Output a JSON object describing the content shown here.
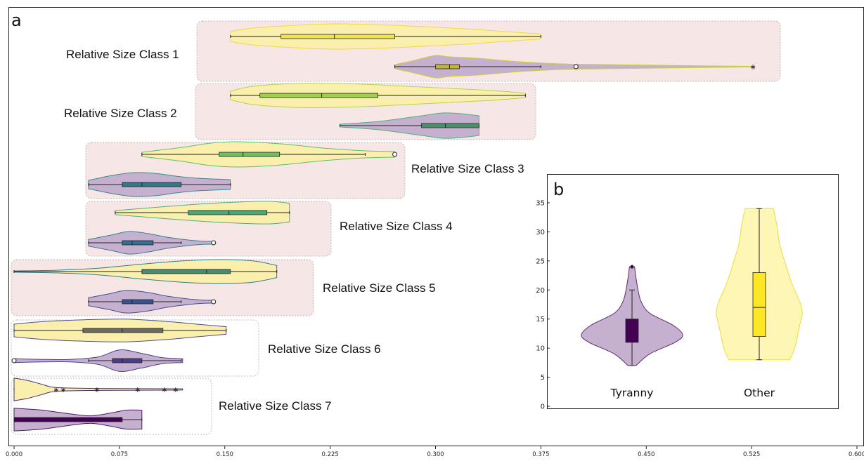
{
  "panel_a_label": "a",
  "panel_b_label": "b",
  "chart_data": [
    {
      "type": "violin",
      "panel": "a",
      "x_ticks": [
        "0.000",
        "0.075",
        "0.150",
        "0.225",
        "0.300",
        "0.375",
        "0.450",
        "0.525",
        "0.600"
      ],
      "xlim": [
        0,
        0.6
      ],
      "colors": {
        "yellow_fill": "#fbefad",
        "purple_fill": "#c6b0cf",
        "highlight_box": "#f6e6e6"
      },
      "classes": [
        {
          "label": "Relative Size Class 1",
          "highlighted": true,
          "upper": {
            "min": 0.154,
            "q1": 0.19,
            "median": 0.228,
            "q3": 0.271,
            "max": 0.375,
            "edge": "#f2d844",
            "box": "#f0e253",
            "profile": [
              [
                0.154,
                0.35
              ],
              [
                0.17,
                0.6
              ],
              [
                0.2,
                0.8
              ],
              [
                0.23,
                0.9
              ],
              [
                0.27,
                0.8
              ],
              [
                0.32,
                0.55
              ],
              [
                0.35,
                0.35
              ],
              [
                0.375,
                0.18
              ]
            ],
            "outliers": []
          },
          "lower": {
            "min": 0.271,
            "q1": 0.3,
            "median": 0.31,
            "q3": 0.317,
            "max": 0.375,
            "edge": "#cbd32c",
            "box": "#bfb53a",
            "profile": [
              [
                0.271,
                0.15
              ],
              [
                0.285,
                0.45
              ],
              [
                0.3,
                0.8
              ],
              [
                0.31,
                0.7
              ],
              [
                0.33,
                0.6
              ],
              [
                0.36,
                0.35
              ],
              [
                0.39,
                0.2
              ],
              [
                0.42,
                0.15
              ],
              [
                0.46,
                0.1
              ],
              [
                0.5,
                0.05
              ],
              [
                0.527,
                0.02
              ]
            ],
            "outliers": [
              {
                "x": 0.4,
                "marker": "o"
              },
              {
                "x": 0.526,
                "marker": "*"
              }
            ]
          }
        },
        {
          "label": "Relative Size Class 2",
          "highlighted": true,
          "upper": {
            "min": 0.154,
            "q1": 0.175,
            "median": 0.219,
            "q3": 0.259,
            "max": 0.364,
            "edge": "#b3d44a",
            "box": "#9ed14a",
            "profile": [
              [
                0.154,
                0.3
              ],
              [
                0.17,
                0.65
              ],
              [
                0.2,
                0.85
              ],
              [
                0.23,
                0.85
              ],
              [
                0.26,
                0.75
              ],
              [
                0.3,
                0.55
              ],
              [
                0.34,
                0.35
              ],
              [
                0.364,
                0.15
              ]
            ],
            "outliers": []
          },
          "lower": {
            "min": 0.232,
            "q1": 0.29,
            "median": 0.307,
            "q3": 0.331,
            "max": 0.331,
            "edge": "#4bb07e",
            "box": "#4a9168",
            "profile": [
              [
                0.232,
                0.1
              ],
              [
                0.26,
                0.3
              ],
              [
                0.29,
                0.7
              ],
              [
                0.305,
                0.9
              ],
              [
                0.318,
                0.85
              ],
              [
                0.331,
                0.7
              ]
            ],
            "outliers": []
          }
        },
        {
          "label": "Relative Size Class 3",
          "highlighted": true,
          "upper": {
            "min": 0.091,
            "q1": 0.146,
            "median": 0.163,
            "q3": 0.189,
            "max": 0.25,
            "edge": "#5fbf67",
            "box": "#6cc15e",
            "profile": [
              [
                0.091,
                0.15
              ],
              [
                0.12,
                0.5
              ],
              [
                0.14,
                0.8
              ],
              [
                0.16,
                0.9
              ],
              [
                0.19,
                0.75
              ],
              [
                0.22,
                0.45
              ],
              [
                0.25,
                0.25
              ],
              [
                0.271,
                0.2
              ]
            ],
            "outliers": [
              {
                "x": 0.271,
                "marker": "o"
              }
            ]
          },
          "lower": {
            "min": 0.053,
            "q1": 0.077,
            "median": 0.091,
            "q3": 0.119,
            "max": 0.154,
            "edge": "#3a8a8c",
            "box": "#2f7a86",
            "profile": [
              [
                0.053,
                0.3
              ],
              [
                0.07,
                0.65
              ],
              [
                0.085,
                0.85
              ],
              [
                0.1,
                0.8
              ],
              [
                0.115,
                0.6
              ],
              [
                0.13,
                0.45
              ],
              [
                0.154,
                0.35
              ]
            ],
            "outliers": []
          }
        },
        {
          "label": "Relative Size Class 4",
          "highlighted": true,
          "upper": {
            "min": 0.072,
            "q1": 0.124,
            "median": 0.153,
            "q3": 0.18,
            "max": 0.196,
            "edge": "#4fb07a",
            "box": "#4aa878",
            "profile": [
              [
                0.072,
                0.15
              ],
              [
                0.09,
                0.3
              ],
              [
                0.12,
                0.55
              ],
              [
                0.15,
                0.75
              ],
              [
                0.18,
                0.85
              ],
              [
                0.196,
                0.7
              ]
            ],
            "outliers": []
          },
          "lower": {
            "min": 0.053,
            "q1": 0.077,
            "median": 0.084,
            "q3": 0.099,
            "max": 0.119,
            "edge": "#3b7a98",
            "box": "#336f93",
            "profile": [
              [
                0.053,
                0.25
              ],
              [
                0.07,
                0.6
              ],
              [
                0.082,
                0.85
              ],
              [
                0.095,
                0.7
              ],
              [
                0.11,
                0.4
              ],
              [
                0.13,
                0.15
              ],
              [
                0.142,
                0.1
              ]
            ],
            "outliers": [
              {
                "x": 0.142,
                "marker": "o"
              }
            ]
          }
        },
        {
          "label": "Relative Size Class 5",
          "highlighted": true,
          "upper": {
            "min": 0.0,
            "q1": 0.091,
            "median": 0.137,
            "q3": 0.154,
            "max": 0.187,
            "edge": "#2f7d8c",
            "box": "#4a8b6e",
            "profile": [
              [
                0.0,
                0.05
              ],
              [
                0.03,
                0.1
              ],
              [
                0.06,
                0.25
              ],
              [
                0.09,
                0.55
              ],
              [
                0.12,
                0.8
              ],
              [
                0.145,
                0.9
              ],
              [
                0.17,
                0.8
              ],
              [
                0.187,
                0.45
              ]
            ],
            "outliers": []
          },
          "lower": {
            "min": 0.053,
            "q1": 0.077,
            "median": 0.084,
            "q3": 0.099,
            "max": 0.119,
            "edge": "#3f4f8c",
            "box": "#39558f",
            "profile": [
              [
                0.053,
                0.3
              ],
              [
                0.068,
                0.6
              ],
              [
                0.08,
                0.85
              ],
              [
                0.095,
                0.7
              ],
              [
                0.11,
                0.4
              ],
              [
                0.13,
                0.15
              ],
              [
                0.142,
                0.1
              ]
            ],
            "outliers": [
              {
                "x": 0.142,
                "marker": "o"
              }
            ]
          }
        },
        {
          "label": "Relative Size Class 6",
          "highlighted": false,
          "upper": {
            "min": 0.0,
            "q1": 0.049,
            "median": 0.077,
            "q3": 0.106,
            "max": 0.151,
            "edge": "#4a4f8a",
            "box": "#6b6b63",
            "profile": [
              [
                0.0,
                0.5
              ],
              [
                0.02,
                0.7
              ],
              [
                0.05,
                0.85
              ],
              [
                0.08,
                0.9
              ],
              [
                0.11,
                0.7
              ],
              [
                0.13,
                0.5
              ],
              [
                0.151,
                0.3
              ]
            ],
            "outliers": []
          },
          "lower": {
            "min": 0.053,
            "q1": 0.07,
            "median": 0.077,
            "q3": 0.091,
            "max": 0.119,
            "edge": "#4a3f8a",
            "box": "#4b3d8a",
            "profile": [
              [
                0.0,
                0.15
              ],
              [
                0.02,
                0.1
              ],
              [
                0.04,
                0.1
              ],
              [
                0.06,
                0.3
              ],
              [
                0.075,
                0.85
              ],
              [
                0.09,
                0.6
              ],
              [
                0.105,
                0.25
              ],
              [
                0.12,
                0.15
              ]
            ],
            "outliers": [
              {
                "x": 0.0,
                "marker": "o"
              }
            ]
          }
        },
        {
          "label": "Relative Size Class 7",
          "highlighted": false,
          "upper": {
            "min": 0.0,
            "q1": 0.0,
            "median": 0.0,
            "q3": 0.0,
            "max": 0.0,
            "edge": "#4b2d6e",
            "box": "#4b2d6e",
            "profile": [
              [
                0.0,
                0.9
              ],
              [
                0.01,
                0.7
              ],
              [
                0.02,
                0.4
              ],
              [
                0.03,
                0.15
              ],
              [
                0.06,
                0.08
              ],
              [
                0.12,
                0.05
              ]
            ],
            "outliers": [
              {
                "x": 0.03,
                "marker": "*"
              },
              {
                "x": 0.035,
                "marker": "*"
              },
              {
                "x": 0.059,
                "marker": "*"
              },
              {
                "x": 0.088,
                "marker": "*"
              },
              {
                "x": 0.107,
                "marker": "*"
              },
              {
                "x": 0.115,
                "marker": "*"
              }
            ]
          },
          "lower": {
            "min": 0.0,
            "q1": 0.0,
            "median": 0.0,
            "q3": 0.077,
            "max": 0.091,
            "edge": "#4b1a5f",
            "box": "#440154",
            "profile": [
              [
                0.0,
                0.9
              ],
              [
                0.02,
                0.75
              ],
              [
                0.04,
                0.45
              ],
              [
                0.055,
                0.3
              ],
              [
                0.07,
                0.55
              ],
              [
                0.08,
                0.75
              ],
              [
                0.091,
                0.75
              ]
            ],
            "outliers": []
          }
        }
      ]
    },
    {
      "type": "violin",
      "panel": "b",
      "categories": [
        "Tyranny",
        "Other"
      ],
      "y_ticks": [
        "0",
        "5",
        "10",
        "15",
        "20",
        "25",
        "30",
        "35"
      ],
      "ylim": [
        0,
        38
      ],
      "series": [
        {
          "category": "Tyranny",
          "min": 7,
          "q1": 11,
          "median": 13,
          "q3": 15,
          "max": 20,
          "fill": "#c6b0cf",
          "edge": "#5b2a6e",
          "box": "#440154",
          "profile": [
            [
              7,
              0.08
            ],
            [
              9,
              0.35
            ],
            [
              11,
              0.85
            ],
            [
              12.3,
              1.0
            ],
            [
              14,
              0.8
            ],
            [
              16,
              0.35
            ],
            [
              18,
              0.18
            ],
            [
              20,
              0.12
            ],
            [
              22,
              0.08
            ],
            [
              24,
              0.05
            ]
          ],
          "outliers": [
            24
          ]
        },
        {
          "category": "Other",
          "min": 8,
          "q1": 12,
          "median": 17,
          "q3": 23,
          "max": 34,
          "fill": "#fdf6b4",
          "edge": "#f0dc3a",
          "box": "#fde725",
          "profile": [
            [
              8,
              0.6
            ],
            [
              10,
              0.7
            ],
            [
              14,
              0.8
            ],
            [
              16,
              0.85
            ],
            [
              18,
              0.8
            ],
            [
              21,
              0.65
            ],
            [
              25,
              0.5
            ],
            [
              28,
              0.4
            ],
            [
              31,
              0.35
            ],
            [
              34,
              0.28
            ]
          ],
          "outliers": []
        }
      ]
    }
  ]
}
